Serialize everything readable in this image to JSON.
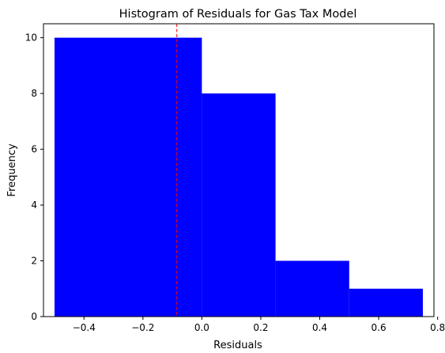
{
  "chart_data": {
    "type": "histogram",
    "title": "Histogram of Residuals for Gas Tax Model",
    "xlabel": "Residuals",
    "ylabel": "Frequency",
    "bins": [
      {
        "start": -0.5,
        "end": 0.0,
        "count": 10
      },
      {
        "start": 0.0,
        "end": 0.25,
        "count": 8
      },
      {
        "start": 0.25,
        "end": 0.5,
        "count": 2
      },
      {
        "start": 0.5,
        "end": 0.75,
        "count": 1
      }
    ],
    "reference_line": {
      "x": -0.085,
      "style": "dashed",
      "color": "#ff0000"
    },
    "bar_color": "#0000ff",
    "xlim": [
      -0.5375,
      0.7875
    ],
    "ylim": [
      0,
      10.5
    ],
    "xticks": [
      -0.4,
      -0.2,
      0.0,
      0.2,
      0.4,
      0.6,
      0.8
    ],
    "xtick_labels": [
      "−0.4",
      "−0.2",
      "0.0",
      "0.2",
      "0.4",
      "0.6",
      "0.8"
    ],
    "yticks": [
      0,
      2,
      4,
      6,
      8,
      10
    ],
    "ytick_labels": [
      "0",
      "2",
      "4",
      "6",
      "8",
      "10"
    ],
    "grid": false,
    "legend": "none"
  }
}
